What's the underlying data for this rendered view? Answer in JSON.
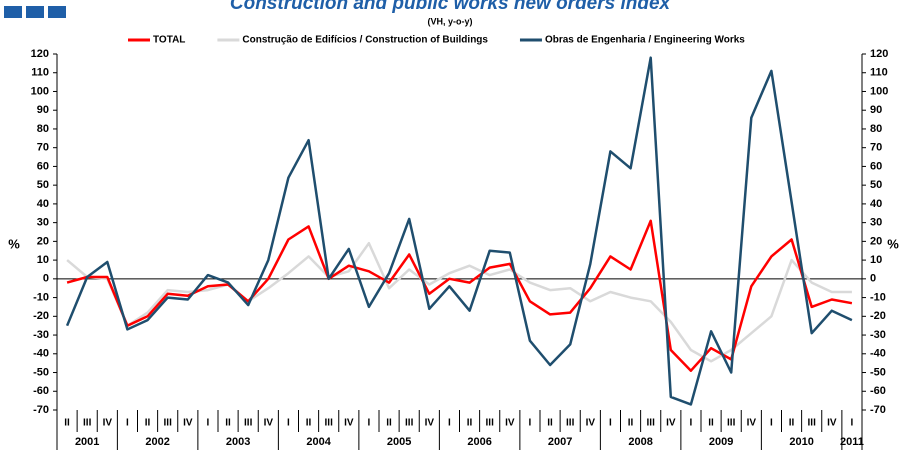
{
  "chart_data": {
    "type": "line",
    "title": "Construction and public works new orders index",
    "subtitle": "(VH, y-o-y)",
    "ylabel": "%",
    "y2label": "%",
    "categories": [
      "II",
      "III",
      "IV",
      "I",
      "II",
      "III",
      "IV",
      "I",
      "II",
      "III",
      "IV",
      "I",
      "II",
      "III",
      "IV",
      "I",
      "II",
      "III",
      "IV",
      "I",
      "II",
      "III",
      "IV",
      "I",
      "II",
      "III",
      "IV",
      "I",
      "II",
      "III",
      "IV",
      "I",
      "II",
      "III",
      "IV",
      "I",
      "II",
      "III",
      "IV",
      "I"
    ],
    "years": [
      "2001",
      "2002",
      "2003",
      "2004",
      "2005",
      "2006",
      "2007",
      "2008",
      "2009",
      "2010",
      "2011"
    ],
    "series": [
      {
        "name": "TOTAL",
        "color": "#ff0000",
        "values": [
          -2,
          1,
          1,
          -25,
          -20,
          -8,
          -9,
          -4,
          -3,
          -12,
          0,
          21,
          28,
          0,
          7,
          4,
          -2,
          13,
          -8,
          0,
          -2,
          6,
          8,
          -12,
          -19,
          -18,
          -5,
          12,
          5,
          31,
          -38,
          -49,
          -37,
          -43,
          -4,
          12,
          21,
          -15,
          -11,
          -13
        ]
      },
      {
        "name": "Construção de Edifícios / Construction of Buildings",
        "color": "#d9d9d9",
        "values": [
          10,
          1,
          0,
          -25,
          -18,
          -6,
          -7,
          -6,
          -3,
          -12,
          -5,
          3,
          12,
          1,
          4,
          19,
          -5,
          5,
          -3,
          3,
          7,
          2,
          5,
          -2,
          -6,
          -5,
          -12,
          -7,
          -10,
          -12,
          -23,
          -38,
          -44,
          -38,
          -29,
          -20,
          10,
          -2,
          -7,
          -7
        ]
      },
      {
        "name": "Obras de Engenharia / Engineering Works",
        "color": "#1f4e6e",
        "values": [
          -25,
          1,
          9,
          -27,
          -22,
          -10,
          -11,
          2,
          -2,
          -14,
          10,
          54,
          74,
          0,
          16,
          -15,
          3,
          32,
          -16,
          -4,
          -17,
          15,
          14,
          -33,
          -46,
          -35,
          8,
          68,
          59,
          118,
          -63,
          -67,
          -28,
          -50,
          86,
          111,
          41,
          -29,
          -17,
          -22
        ]
      }
    ],
    "ylim": [
      -70,
      120
    ],
    "yticks": [
      -70,
      -60,
      -50,
      -40,
      -30,
      -20,
      -10,
      0,
      10,
      20,
      30,
      40,
      50,
      60,
      70,
      80,
      90,
      100,
      110,
      120
    ],
    "grid": false
  }
}
